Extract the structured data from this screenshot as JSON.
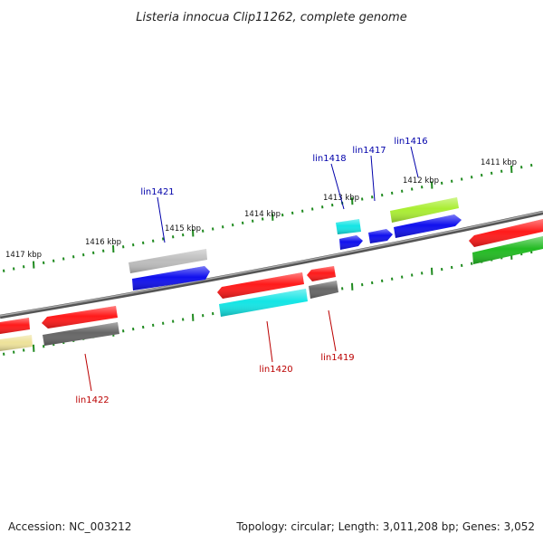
{
  "title": "Listeria innocua Clip11262, complete genome",
  "footer": {
    "accession": "Accession: NC_003212",
    "summary": "Topology: circular; Length: 3,011,208 bp; Genes: 3,052"
  },
  "scale_labels": [
    "1417 kbp",
    "1416 kbp",
    "1415 kbp",
    "1414 kbp",
    "1413 kbp",
    "1412 kbp",
    "1411 kbp"
  ],
  "gene_labels": {
    "forward": [
      "lin1421",
      "lin1418",
      "lin1417",
      "lin1416"
    ],
    "reverse": [
      "lin1422",
      "lin1420",
      "lin1419"
    ]
  },
  "colors": {
    "forward_label": "#0000aa",
    "reverse_label": "#bb0000",
    "tick": "#1f8a1f",
    "backbone": "#777777",
    "red": "#ff1a1a",
    "blue": "#1010ee",
    "gray": "#666666",
    "light_gray": "#bdbdbd",
    "cyan": "#14e5e5",
    "lime": "#aaee33",
    "green": "#22bb22",
    "khaki": "#eee29a"
  }
}
